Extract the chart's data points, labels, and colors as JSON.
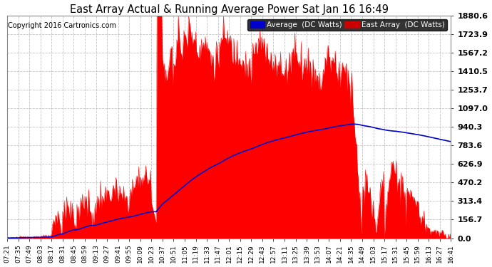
{
  "title": "East Array Actual & Running Average Power Sat Jan 16 16:49",
  "copyright": "Copyright 2016 Cartronics.com",
  "legend_labels": [
    "Average  (DC Watts)",
    "East Array  (DC Watts)"
  ],
  "background_color": "#ffffff",
  "plot_bg_color": "#ffffff",
  "grid_color": "#aaaaaa",
  "fill_color": "#ff0000",
  "line_color": "#0000cc",
  "ytick_labels": [
    "0.0",
    "156.7",
    "313.4",
    "470.2",
    "626.9",
    "783.6",
    "940.3",
    "1097.0",
    "1253.7",
    "1410.5",
    "1567.2",
    "1723.9",
    "1880.6"
  ],
  "ymax": 1880.6,
  "ymin": 0.0,
  "xtick_labels": [
    "07:21",
    "07:35",
    "07:49",
    "08:03",
    "08:17",
    "08:31",
    "08:45",
    "08:59",
    "09:13",
    "09:27",
    "09:41",
    "09:55",
    "10:09",
    "10:23",
    "10:37",
    "10:51",
    "11:05",
    "11:19",
    "11:33",
    "11:47",
    "12:01",
    "12:15",
    "12:29",
    "12:43",
    "12:57",
    "13:11",
    "13:25",
    "13:39",
    "13:53",
    "14:07",
    "14:21",
    "14:35",
    "14:49",
    "15:03",
    "15:17",
    "15:31",
    "15:45",
    "15:59",
    "16:13",
    "16:27",
    "16:41"
  ],
  "legend_bg_colors": [
    "#0000cc",
    "#cc0000"
  ]
}
